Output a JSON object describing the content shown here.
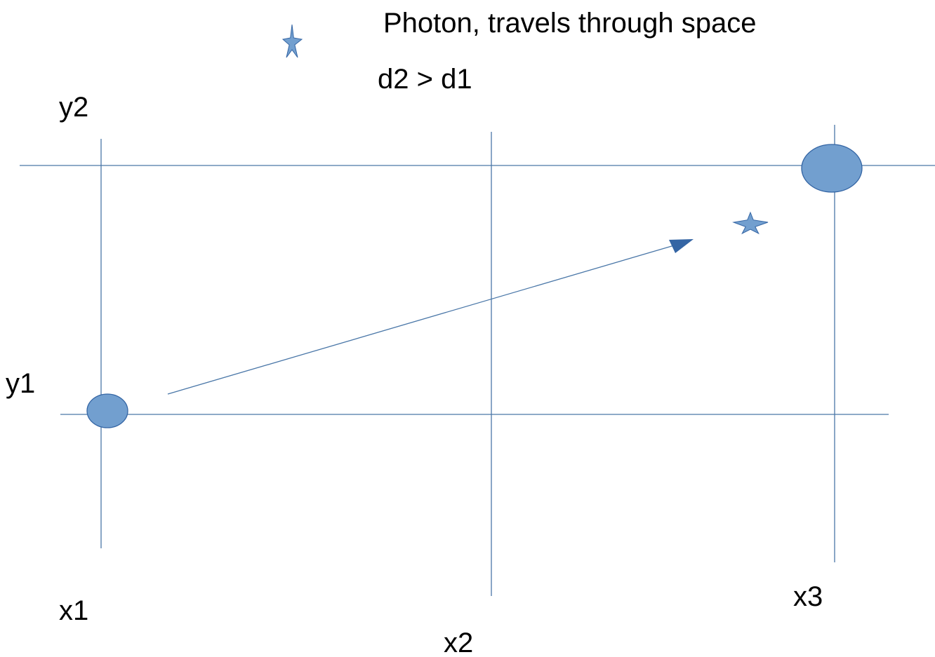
{
  "title": "Photon, travels through space",
  "relation": "d2 > d1",
  "labels": {
    "y2": "y2",
    "y1": "y1",
    "x1": "x1",
    "x2": "x2",
    "x3": "x3"
  },
  "colors": {
    "line": "#4a77a8",
    "fill": "#729fcf",
    "stroke": "#3465a4",
    "arrow_head": "#3465a4",
    "text": "#000000"
  },
  "icons": {
    "legend_star": "star-icon",
    "photon_star": "star-icon"
  }
}
